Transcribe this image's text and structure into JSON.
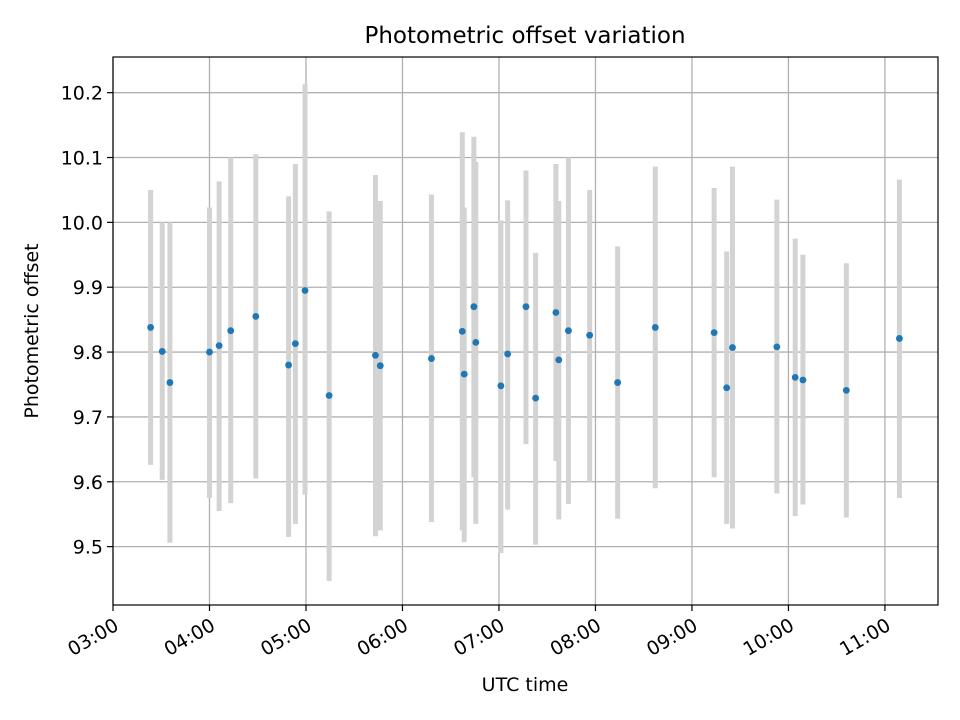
{
  "chart_data": {
    "type": "scatter",
    "title": "Photometric offset variation",
    "xlabel": "UTC time",
    "ylabel": "Photometric offset",
    "x_ticks": [
      "03:00",
      "04:00",
      "05:00",
      "06:00",
      "07:00",
      "08:00",
      "09:00",
      "10:00",
      "11:00"
    ],
    "x_tick_hours": [
      3,
      4,
      5,
      6,
      7,
      8,
      9,
      10,
      11
    ],
    "y_ticks": [
      "9.5",
      "9.6",
      "9.7",
      "9.8",
      "9.9",
      "10.0",
      "10.1",
      "10.2"
    ],
    "y_tick_values": [
      9.5,
      9.6,
      9.7,
      9.8,
      9.9,
      10.0,
      10.1,
      10.2
    ],
    "xlim_hours": [
      3.0,
      11.55
    ],
    "ylim": [
      9.41,
      10.255
    ],
    "grid": true,
    "colors": {
      "marker": "#1f77b4",
      "errorbar": "#d3d3d3",
      "grid": "#b0b0b0",
      "axes": "#000000"
    },
    "points": [
      {
        "t": "03:23",
        "h": 3.39,
        "y": 9.838,
        "err_low": 9.626,
        "err_high": 10.05
      },
      {
        "t": "03:30",
        "h": 3.51,
        "y": 9.801,
        "err_low": 9.603,
        "err_high": 10.0
      },
      {
        "t": "03:35",
        "h": 3.59,
        "y": 9.753,
        "err_low": 9.506,
        "err_high": 10.0
      },
      {
        "t": "04:00",
        "h": 4.0,
        "y": 9.8,
        "err_low": 9.575,
        "err_high": 10.023
      },
      {
        "t": "04:06",
        "h": 4.1,
        "y": 9.81,
        "err_low": 9.555,
        "err_high": 10.063
      },
      {
        "t": "04:13",
        "h": 4.22,
        "y": 9.833,
        "err_low": 9.567,
        "err_high": 10.1
      },
      {
        "t": "04:29",
        "h": 4.48,
        "y": 9.855,
        "err_low": 9.605,
        "err_high": 10.105
      },
      {
        "t": "04:50",
        "h": 4.82,
        "y": 9.78,
        "err_low": 9.515,
        "err_high": 10.04
      },
      {
        "t": "04:53",
        "h": 4.89,
        "y": 9.813,
        "err_low": 9.535,
        "err_high": 10.09
      },
      {
        "t": "05:00",
        "h": 4.99,
        "y": 9.895,
        "err_low": 9.58,
        "err_high": 10.213
      },
      {
        "t": "05:14",
        "h": 5.24,
        "y": 9.733,
        "err_low": 9.447,
        "err_high": 10.017
      },
      {
        "t": "05:43",
        "h": 5.72,
        "y": 9.795,
        "err_low": 9.516,
        "err_high": 10.073
      },
      {
        "t": "05:46",
        "h": 5.77,
        "y": 9.779,
        "err_low": 9.525,
        "err_high": 10.033
      },
      {
        "t": "06:18",
        "h": 6.3,
        "y": 9.79,
        "err_low": 9.538,
        "err_high": 10.043
      },
      {
        "t": "06:37",
        "h": 6.62,
        "y": 9.832,
        "err_low": 9.525,
        "err_high": 10.139
      },
      {
        "t": "06:38",
        "h": 6.64,
        "y": 9.766,
        "err_low": 9.507,
        "err_high": 10.023
      },
      {
        "t": "06:44",
        "h": 6.74,
        "y": 9.87,
        "err_low": 9.607,
        "err_high": 10.132
      },
      {
        "t": "06:46",
        "h": 6.76,
        "y": 9.815,
        "err_low": 9.535,
        "err_high": 10.093
      },
      {
        "t": "07:01",
        "h": 7.02,
        "y": 9.748,
        "err_low": 9.49,
        "err_high": 10.003
      },
      {
        "t": "07:05",
        "h": 7.09,
        "y": 9.797,
        "err_low": 9.557,
        "err_high": 10.034
      },
      {
        "t": "07:17",
        "h": 7.28,
        "y": 9.87,
        "err_low": 9.658,
        "err_high": 10.08
      },
      {
        "t": "07:23",
        "h": 7.38,
        "y": 9.729,
        "err_low": 9.503,
        "err_high": 9.953
      },
      {
        "t": "07:35",
        "h": 7.59,
        "y": 9.861,
        "err_low": 9.632,
        "err_high": 10.09
      },
      {
        "t": "07:37",
        "h": 7.62,
        "y": 9.788,
        "err_low": 9.542,
        "err_high": 10.033
      },
      {
        "t": "07:43",
        "h": 7.72,
        "y": 9.833,
        "err_low": 9.566,
        "err_high": 10.1
      },
      {
        "t": "07:56",
        "h": 7.94,
        "y": 9.826,
        "err_low": 9.6,
        "err_high": 10.05
      },
      {
        "t": "08:14",
        "h": 8.23,
        "y": 9.753,
        "err_low": 9.543,
        "err_high": 9.963
      },
      {
        "t": "08:37",
        "h": 8.62,
        "y": 9.838,
        "err_low": 9.59,
        "err_high": 10.086
      },
      {
        "t": "09:14",
        "h": 9.23,
        "y": 9.83,
        "err_low": 9.607,
        "err_high": 10.053
      },
      {
        "t": "09:21",
        "h": 9.36,
        "y": 9.745,
        "err_low": 9.535,
        "err_high": 9.955
      },
      {
        "t": "09:25",
        "h": 9.42,
        "y": 9.807,
        "err_low": 9.528,
        "err_high": 10.086
      },
      {
        "t": "09:53",
        "h": 9.88,
        "y": 9.808,
        "err_low": 9.582,
        "err_high": 10.035
      },
      {
        "t": "10:04",
        "h": 10.07,
        "y": 9.761,
        "err_low": 9.547,
        "err_high": 9.975
      },
      {
        "t": "10:09",
        "h": 10.15,
        "y": 9.757,
        "err_low": 9.565,
        "err_high": 9.95
      },
      {
        "t": "10:36",
        "h": 10.6,
        "y": 9.741,
        "err_low": 9.545,
        "err_high": 9.937
      },
      {
        "t": "11:09",
        "h": 11.15,
        "y": 9.821,
        "err_low": 9.575,
        "err_high": 10.066
      }
    ]
  }
}
